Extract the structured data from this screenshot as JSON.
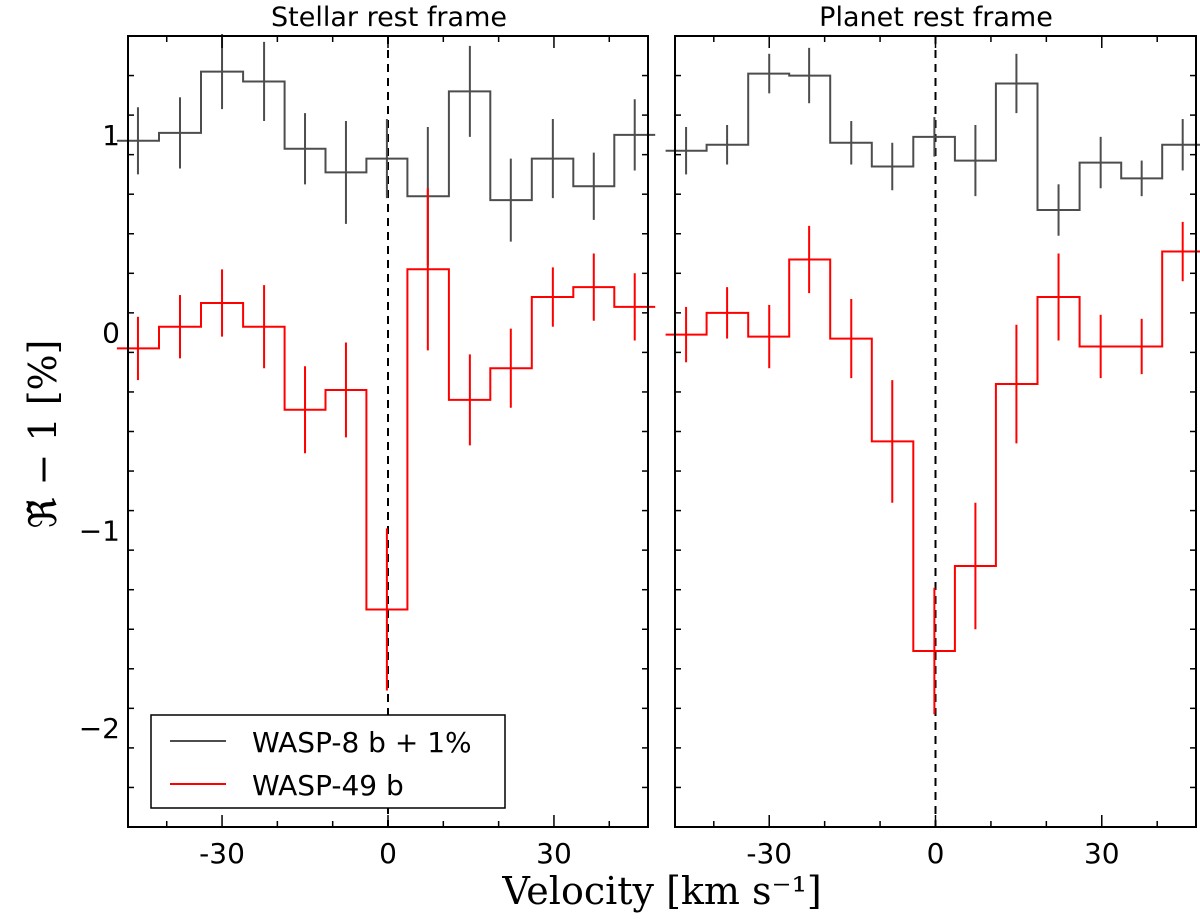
{
  "chart_data": [
    {
      "type": "step",
      "title": "Stellar rest frame",
      "xlabel": "Velocity [km s⁻¹]",
      "ylabel": "ℜ̃ − 1 [%]",
      "xlim": [
        -47,
        47
      ],
      "ylim": [
        -2.5,
        1.5
      ],
      "xticks": [
        "-30",
        "0",
        "30"
      ],
      "yticks": [
        "1",
        "0",
        "−1",
        "−2"
      ],
      "vline": 0,
      "series": [
        {
          "name": "WASP-8 b + 1%",
          "color": "#4d4d4d",
          "x": [
            -45.2,
            -37.6,
            -30,
            -22.4,
            -15,
            -7.6,
            -0.2,
            7.2,
            14.8,
            22.2,
            29.8,
            37.2,
            44.6
          ],
          "y": [
            0.97,
            1.01,
            1.32,
            1.27,
            0.93,
            0.81,
            0.88,
            0.69,
            1.22,
            0.67,
            0.88,
            0.74,
            1.0
          ],
          "err": [
            0.17,
            0.18,
            0.19,
            0.2,
            0.18,
            0.26,
            0.2,
            0.35,
            0.23,
            0.21,
            0.2,
            0.17,
            0.18
          ]
        },
        {
          "name": "WASP-49 b",
          "color": "#ff0000",
          "x": [
            -45.2,
            -37.6,
            -30,
            -22.4,
            -15,
            -7.6,
            -0.2,
            7.2,
            14.8,
            22.2,
            29.8,
            37.2,
            44.6
          ],
          "y": [
            -0.08,
            0.03,
            0.15,
            0.03,
            -0.39,
            -0.29,
            -1.4,
            0.32,
            -0.34,
            -0.18,
            0.18,
            0.23,
            0.13
          ],
          "err": [
            0.16,
            0.16,
            0.17,
            0.21,
            0.22,
            0.24,
            0.41,
            0.41,
            0.23,
            0.2,
            0.15,
            0.17,
            0.17
          ]
        }
      ],
      "legend": {
        "location": "lower-left",
        "entries": [
          "WASP-8 b + 1%",
          "WASP-49 b"
        ]
      }
    },
    {
      "type": "step",
      "title": "Planet rest frame",
      "xlim": [
        -47,
        47
      ],
      "ylim": [
        -2.5,
        1.5
      ],
      "xticks": [
        "-30",
        "0",
        "30"
      ],
      "vline": 0,
      "series": [
        {
          "name": "WASP-8 b + 1%",
          "color": "#4d4d4d",
          "x": [
            -45,
            -37.6,
            -30,
            -22.8,
            -15.2,
            -7.8,
            -0.2,
            7.2,
            14.6,
            22.2,
            29.8,
            37.2,
            44.6
          ],
          "y": [
            0.92,
            0.95,
            1.31,
            1.3,
            0.96,
            0.84,
            0.99,
            0.87,
            1.26,
            0.62,
            0.86,
            0.78,
            0.95
          ],
          "err": [
            0.12,
            0.1,
            0.1,
            0.14,
            0.11,
            0.12,
            0.1,
            0.18,
            0.15,
            0.13,
            0.13,
            0.09,
            0.13
          ]
        },
        {
          "name": "WASP-49 b",
          "color": "#ff0000",
          "x": [
            -45,
            -37.6,
            -30,
            -22.8,
            -15.2,
            -7.8,
            -0.2,
            7.2,
            14.6,
            22.2,
            29.8,
            37.2,
            44.6
          ],
          "y": [
            -0.01,
            0.1,
            -0.02,
            0.37,
            -0.03,
            -0.55,
            -1.61,
            -1.18,
            -0.26,
            0.18,
            -0.07,
            -0.07,
            0.41
          ],
          "err": [
            0.14,
            0.13,
            0.16,
            0.17,
            0.2,
            0.31,
            0.32,
            0.32,
            0.3,
            0.22,
            0.16,
            0.14,
            0.15
          ]
        }
      ]
    }
  ]
}
